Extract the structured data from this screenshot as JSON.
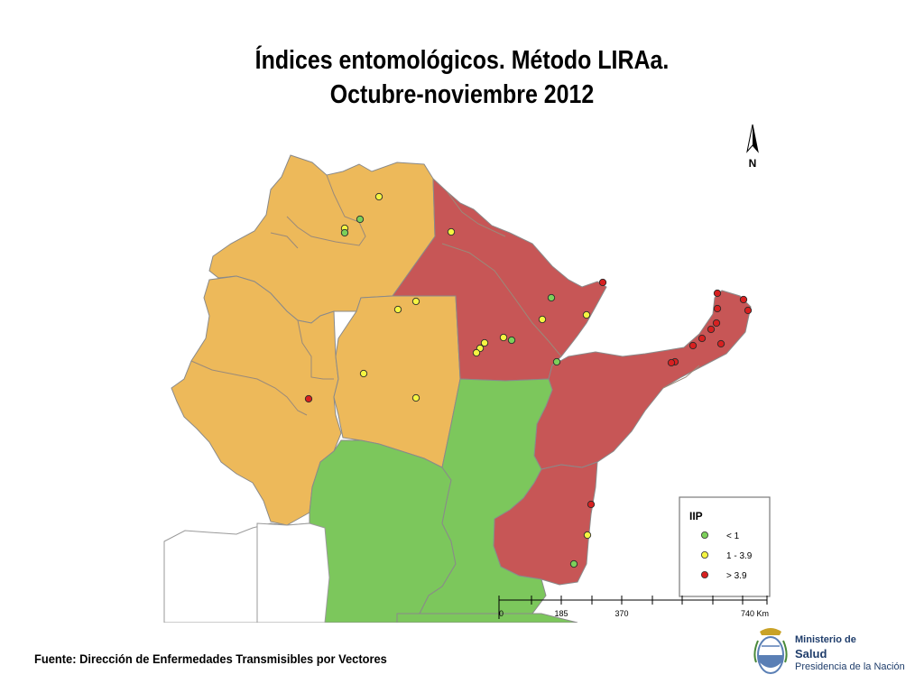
{
  "title": {
    "line1": "Índices entomológicos. Método LIRAa.",
    "line2": "Octubre-noviembre 2012"
  },
  "north_arrow": {
    "label": "N"
  },
  "legend": {
    "title": "IIP",
    "items": [
      {
        "label": "< 1",
        "color": "#7cd05a"
      },
      {
        "label": "1 - 3.9",
        "color": "#f5f542"
      },
      {
        "label": "> 3.9",
        "color": "#d82020"
      }
    ]
  },
  "scale_bar": {
    "ticks": [
      "0",
      "185",
      "370",
      "740 Km"
    ]
  },
  "colors": {
    "region_orange": "#edb95a",
    "region_red": "#c75656",
    "region_green": "#7cc75c",
    "border": "#8a8a8a"
  },
  "footer": {
    "source": "Fuente: Dirección de Enfermedades Transmisibles por Vectores"
  },
  "logo": {
    "line1": "Ministerio de",
    "line2": "Salud",
    "line3": "Presidencia de la Nación"
  }
}
